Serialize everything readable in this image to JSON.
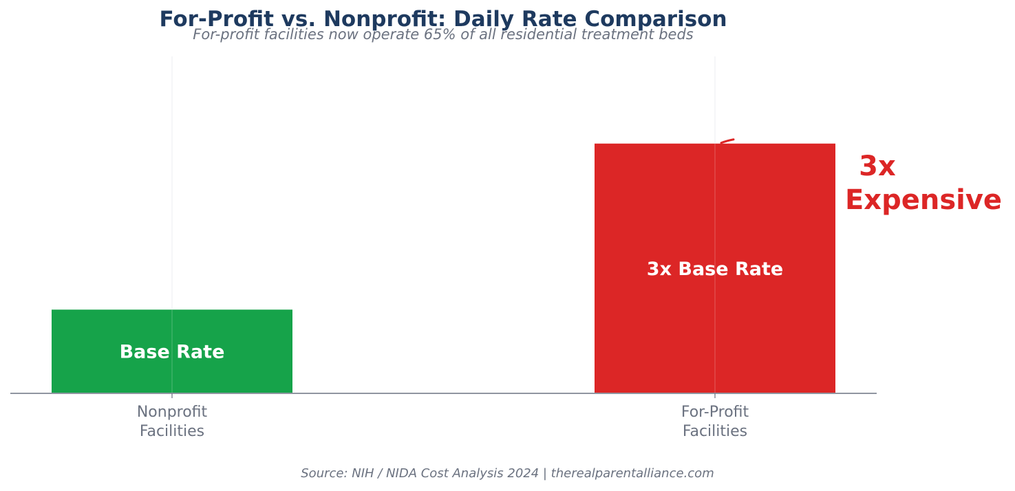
{
  "title": "For-Profit vs. Nonprofit: Daily Rate Comparison",
  "subtitle": "For-profit facilities now operate 65% of all residential treatment beds",
  "source": "Source: NIH / NIDA Cost Analysis 2024 | therealparentalliance.com",
  "chart_data": {
    "type": "bar",
    "categories": [
      [
        "Nonprofit",
        "Facilities"
      ],
      [
        "For-Profit",
        "Facilities"
      ]
    ],
    "values": [
      1,
      3
    ],
    "bar_labels": [
      "Base Rate",
      "3x Base Rate"
    ],
    "colors": [
      "#16a34a",
      "#dc2626"
    ],
    "grid": "vertical",
    "annotation": {
      "lines": [
        "3x",
        "Expensive"
      ],
      "color": "#dc2626",
      "target_category": 1
    }
  }
}
